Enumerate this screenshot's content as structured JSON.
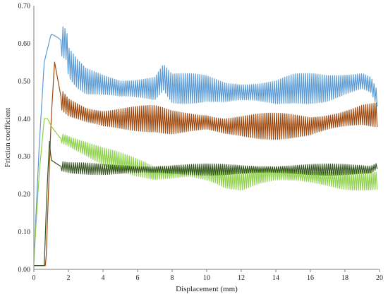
{
  "chart_data": {
    "type": "line",
    "title": "",
    "xlabel": "Displacement (mm)",
    "ylabel": "Friction coefficient",
    "xlim": [
      0,
      20
    ],
    "ylim": [
      0,
      0.7
    ],
    "x_ticks": [
      "0",
      "2",
      "4",
      "6",
      "8",
      "10",
      "12",
      "14",
      "16",
      "18",
      "20"
    ],
    "y_ticks": [
      "0.00",
      "0.10",
      "0.20",
      "0.30",
      "0.40",
      "0.50",
      "0.60",
      "0.70"
    ],
    "grid": false,
    "legend": "none",
    "series": [
      {
        "color": "#5b9bd5",
        "x": [
          0,
          0.3,
          0.6,
          1.0,
          1.4,
          1.9,
          2.0,
          2.5,
          3,
          4,
          5,
          6,
          7,
          7.5,
          8,
          9,
          10,
          11,
          12,
          13,
          14,
          15,
          16,
          17,
          18,
          19,
          19.5,
          19.9
        ],
        "y": [
          0.02,
          0.32,
          0.55,
          0.625,
          0.615,
          0.595,
          0.55,
          0.52,
          0.5,
          0.49,
          0.48,
          0.48,
          0.48,
          0.51,
          0.48,
          0.48,
          0.48,
          0.47,
          0.47,
          0.47,
          0.47,
          0.48,
          0.48,
          0.48,
          0.49,
          0.5,
          0.49,
          0.45
        ],
        "amplitude": 0.04
      },
      {
        "color": "#9e480e",
        "x": [
          0,
          0.7,
          0.8,
          1.0,
          1.2,
          1.4,
          1.6,
          2,
          3,
          4,
          5,
          6,
          7,
          8,
          9,
          10,
          11,
          12,
          13,
          14,
          15,
          16,
          17,
          18,
          19,
          19.9
        ],
        "y": [
          0.01,
          0.01,
          0.15,
          0.4,
          0.55,
          0.5,
          0.45,
          0.43,
          0.41,
          0.4,
          0.4,
          0.4,
          0.4,
          0.39,
          0.39,
          0.39,
          0.38,
          0.38,
          0.38,
          0.38,
          0.38,
          0.38,
          0.39,
          0.4,
          0.41,
          0.41
        ],
        "amplitude": 0.035
      },
      {
        "color": "#8ed14a",
        "x": [
          0,
          0.3,
          0.6,
          0.8,
          1.0,
          1.5,
          2,
          3,
          4,
          5,
          6,
          7,
          8,
          9,
          10,
          10.5,
          11,
          12,
          13,
          14,
          15,
          16,
          17,
          18,
          19,
          19.9
        ],
        "y": [
          0.02,
          0.25,
          0.4,
          0.4,
          0.38,
          0.35,
          0.34,
          0.32,
          0.3,
          0.285,
          0.27,
          0.255,
          0.255,
          0.26,
          0.255,
          0.25,
          0.24,
          0.235,
          0.25,
          0.255,
          0.25,
          0.245,
          0.24,
          0.235,
          0.235,
          0.235
        ],
        "amplitude": 0.025
      },
      {
        "color": "#375623",
        "x": [
          0,
          0.6,
          0.75,
          0.9,
          1.0,
          1.5,
          2,
          4,
          6,
          8,
          10,
          12,
          14,
          16,
          18,
          19.5,
          19.9
        ],
        "y": [
          0.01,
          0.01,
          0.2,
          0.34,
          0.29,
          0.275,
          0.27,
          0.265,
          0.265,
          0.265,
          0.265,
          0.265,
          0.265,
          0.265,
          0.265,
          0.265,
          0.275
        ],
        "amplitude": 0.015
      }
    ]
  }
}
